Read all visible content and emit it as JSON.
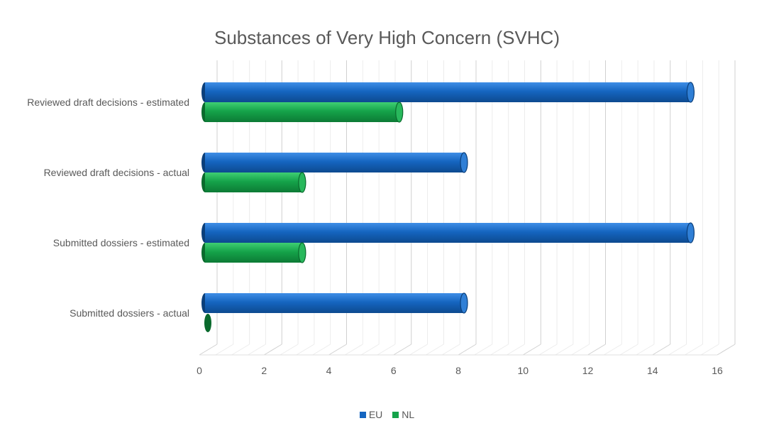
{
  "chart_data": {
    "type": "bar",
    "orientation": "horizontal",
    "style": "3d-cylinder",
    "title": "Substances of Very High Concern (SVHC)",
    "categories": [
      "Reviewed draft decisions - estimated",
      "Reviewed draft decisions - actual",
      "Submitted dossiers - estimated",
      "Submitted dossiers - actual"
    ],
    "series": [
      {
        "name": "EU",
        "color": "#1565c0",
        "values": [
          15,
          8,
          15,
          8
        ]
      },
      {
        "name": "NL",
        "color": "#15a34a",
        "values": [
          6,
          3,
          3,
          0
        ]
      }
    ],
    "xlim": [
      0,
      16
    ],
    "xticks": [
      "0",
      "2",
      "4",
      "6",
      "8",
      "10",
      "12",
      "14",
      "16"
    ],
    "grid": true,
    "legend": "bottom"
  }
}
